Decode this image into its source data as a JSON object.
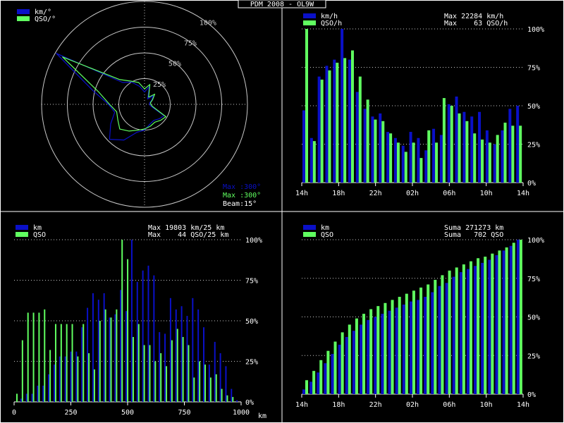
{
  "window_title": "PDM 2008 - OL9W",
  "colors": {
    "blue": "#0a10c8",
    "green": "#60ff60",
    "grid": "#c8c8c8",
    "frame": "#ffffff",
    "text": "#ffffff",
    "bg": "#000000"
  },
  "polar": {
    "legend": [
      "km/°",
      "QSO/°"
    ],
    "ring_labels": [
      "25%",
      "50%",
      "75%",
      "100%"
    ],
    "info": {
      "max_km": "Max :300°",
      "max_qso": "Max :300°",
      "beam": "Beam:15°"
    }
  },
  "chart_data": [
    {
      "type": "line",
      "subtype": "polar",
      "legend": [
        "km/°",
        "QSO/°"
      ],
      "theta_deg": [
        0,
        15,
        30,
        45,
        60,
        75,
        90,
        105,
        120,
        135,
        150,
        165,
        180,
        195,
        210,
        225,
        240,
        255,
        270,
        285,
        300,
        315,
        330,
        345
      ],
      "series": [
        {
          "name": "km/°",
          "values": [
            12,
            18,
            6,
            12,
            8,
            5,
            5,
            6,
            22,
            20,
            18,
            20,
            25,
            28,
            40,
            48,
            38,
            30,
            35,
            52,
            99,
            30,
            25,
            18
          ]
        },
        {
          "name": "QSO/°",
          "values": [
            15,
            20,
            8,
            14,
            9,
            6,
            6,
            8,
            24,
            22,
            20,
            22,
            24,
            26,
            30,
            34,
            30,
            28,
            34,
            46,
            92,
            34,
            26,
            22
          ]
        }
      ],
      "rlim": [
        0,
        100
      ],
      "ring_labels": [
        "25%",
        "50%",
        "75%",
        "100%"
      ]
    },
    {
      "type": "bar",
      "legend": [
        "km/h",
        "QSO/h"
      ],
      "info": [
        "Max 22284 km/h",
        "Max    63 QSO/h"
      ],
      "x_ticks": [
        "14h",
        "18h",
        "22h",
        "02h",
        "06h",
        "10h",
        "14h"
      ],
      "series": [
        {
          "name": "km/h",
          "values": [
            47,
            29,
            69,
            76,
            80,
            100,
            80,
            59,
            48,
            43,
            45,
            33,
            29,
            24,
            33,
            29,
            21,
            35,
            31,
            51,
            56,
            46,
            43,
            46,
            34,
            25,
            34,
            48,
            50
          ]
        },
        {
          "name": "QSO/h",
          "values": [
            100,
            27,
            67,
            73,
            78,
            81,
            86,
            69,
            54,
            41,
            40,
            32,
            26,
            20,
            26,
            16,
            34,
            26,
            55,
            50,
            45,
            40,
            32,
            28,
            26,
            31,
            39,
            37,
            37
          ]
        }
      ],
      "ylim": [
        0,
        100
      ],
      "y_ticks": [
        "0%",
        "25%",
        "50%",
        "75%",
        "100%"
      ]
    },
    {
      "type": "bar",
      "legend": [
        "km",
        "QSO"
      ],
      "info": [
        "Max 19803 km/25 km",
        "Max    44 QSO/25 km"
      ],
      "x_ticks": [
        "0",
        "250",
        "500",
        "750",
        "1000"
      ],
      "xlabel": "km",
      "x_range": [
        0,
        1000
      ],
      "bin_width": 25,
      "series": [
        {
          "name": "km",
          "values": [
            0,
            2,
            5,
            5,
            10,
            10,
            17,
            23,
            28,
            28,
            31,
            31,
            46,
            58,
            67,
            63,
            67,
            52,
            54,
            69,
            56,
            100,
            74,
            81,
            84,
            78,
            43,
            42,
            64,
            57,
            59,
            53,
            64,
            57,
            46,
            23,
            37,
            30,
            22,
            8,
            1
          ]
        },
        {
          "name": "QSO",
          "values": [
            5,
            38,
            55,
            55,
            55,
            57,
            32,
            48,
            48,
            48,
            48,
            28,
            48,
            30,
            20,
            50,
            57,
            52,
            57,
            100,
            88,
            40,
            48,
            35,
            35,
            25,
            30,
            22,
            38,
            45,
            40,
            35,
            15,
            25,
            23,
            15,
            17,
            8,
            4,
            3,
            0
          ]
        }
      ],
      "ylim": [
        0,
        100
      ],
      "y_ticks": [
        "0%",
        "25%",
        "50%",
        "75%",
        "100%"
      ]
    },
    {
      "type": "bar",
      "legend": [
        "km",
        "QSO"
      ],
      "info": [
        "Suma 271273 km",
        "Suma   702 QSO"
      ],
      "x_ticks": [
        "14h",
        "18h",
        "22h",
        "02h",
        "06h",
        "10h",
        "14h"
      ],
      "series": [
        {
          "name": "km",
          "values": [
            3,
            8,
            14,
            20,
            26,
            32,
            37,
            41,
            45,
            48,
            50,
            52,
            54,
            56,
            58,
            60,
            61,
            63,
            66,
            70,
            72,
            76,
            79,
            81,
            83,
            85,
            87,
            90,
            93,
            96,
            100
          ]
        },
        {
          "name": "QSO",
          "values": [
            9,
            15,
            22,
            28,
            34,
            40,
            45,
            49,
            52,
            55,
            57,
            59,
            61,
            63,
            65,
            67,
            69,
            71,
            74,
            77,
            80,
            82,
            84,
            86,
            88,
            89,
            91,
            93,
            95,
            98,
            100
          ]
        }
      ],
      "ylim": [
        0,
        100
      ],
      "y_ticks": [
        "0%",
        "25%",
        "50%",
        "75%",
        "100%"
      ]
    }
  ]
}
